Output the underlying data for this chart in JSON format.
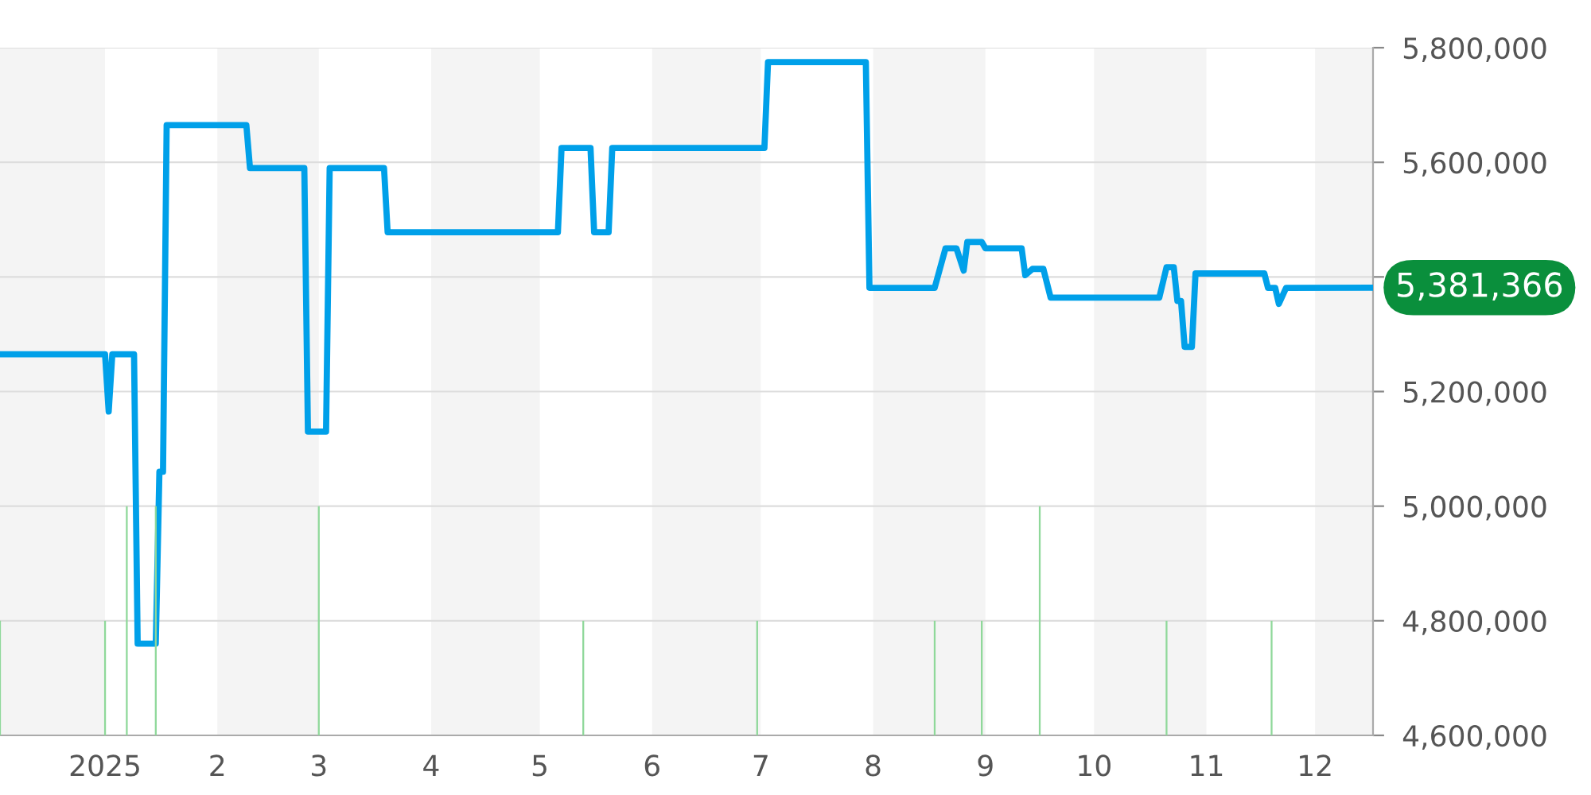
{
  "chart_data": {
    "type": "line",
    "series": [
      {
        "color": "#00a0e9",
        "x": [
          "2024-12-03",
          "2025-01-01",
          "2025-01-02",
          "2025-01-03",
          "2025-01-09",
          "2025-01-10",
          "2025-01-15",
          "2025-01-16",
          "2025-01-17",
          "2025-01-18",
          "2025-02-09",
          "2025-02-10",
          "2025-02-25",
          "2025-02-26",
          "2025-03-03",
          "2025-03-04",
          "2025-03-19",
          "2025-03-20",
          "2025-05-06",
          "2025-05-07",
          "2025-05-15",
          "2025-05-16",
          "2025-05-20",
          "2025-05-21",
          "2025-07-02",
          "2025-07-03",
          "2025-07-30",
          "2025-07-31",
          "2025-08-18",
          "2025-08-21",
          "2025-08-24",
          "2025-08-26",
          "2025-08-27",
          "2025-08-31",
          "2025-09-01",
          "2025-09-11",
          "2025-09-12",
          "2025-09-14",
          "2025-09-17",
          "2025-09-19",
          "2025-10-19",
          "2025-10-21",
          "2025-10-23",
          "2025-10-24",
          "2025-10-25",
          "2025-10-26",
          "2025-10-28",
          "2025-10-29",
          "2025-11-17",
          "2025-11-18",
          "2025-11-20",
          "2025-11-21",
          "2025-11-23",
          "2025-12-17"
        ],
        "values": [
          5265000,
          5265000,
          5165000,
          5265000,
          5265000,
          4760000,
          4760000,
          5060000,
          5060000,
          5665000,
          5665000,
          5590000,
          5590000,
          5130000,
          5130000,
          5590000,
          5590000,
          5478000,
          5478000,
          5625000,
          5625000,
          5478000,
          5478000,
          5625000,
          5625000,
          5775000,
          5775000,
          5381000,
          5381000,
          5450000,
          5450000,
          5411000,
          5461000,
          5461000,
          5450000,
          5450000,
          5403000,
          5414000,
          5414000,
          5364000,
          5364000,
          5417000,
          5417000,
          5358000,
          5358000,
          5278000,
          5278000,
          5406000,
          5406000,
          5381000,
          5381000,
          5353000,
          5381000,
          5381366
        ]
      },
      {
        "type": "bar",
        "color": "#8fd89a",
        "x": [
          "2024-12-03",
          "2025-01-01",
          "2025-01-07",
          "2025-01-15",
          "2025-03-01",
          "2025-05-13",
          "2025-06-30",
          "2025-08-18",
          "2025-08-31",
          "2025-09-16",
          "2025-10-21",
          "2025-11-19"
        ],
        "base": [
          4600000,
          4600000,
          4600000,
          4600000,
          4600000,
          4600000,
          4600000,
          4600000,
          4600000,
          4600000,
          4600000,
          4600000
        ],
        "values": [
          200000,
          200000,
          400000,
          400000,
          400000,
          200000,
          200000,
          200000,
          200000,
          400000,
          200000,
          200000
        ]
      }
    ],
    "xlim": [
      "2024-12-03",
      "2025-12-17"
    ],
    "xticks": [
      {
        "value": "2025-01-01",
        "label": "2025"
      },
      {
        "value": "2025-02-01",
        "label": "2"
      },
      {
        "value": "2025-03-01",
        "label": "3"
      },
      {
        "value": "2025-04-01",
        "label": "4"
      },
      {
        "value": "2025-05-01",
        "label": "5"
      },
      {
        "value": "2025-06-01",
        "label": "6"
      },
      {
        "value": "2025-07-01",
        "label": "7"
      },
      {
        "value": "2025-08-01",
        "label": "8"
      },
      {
        "value": "2025-09-01",
        "label": "9"
      },
      {
        "value": "2025-10-01",
        "label": "10"
      },
      {
        "value": "2025-11-01",
        "label": "11"
      },
      {
        "value": "2025-12-01",
        "label": "12"
      }
    ],
    "ylim": [
      4600000,
      5800000
    ],
    "yticks": [
      {
        "value": 4600000,
        "label": "4,600,000"
      },
      {
        "value": 4800000,
        "label": "4,800,000"
      },
      {
        "value": 5000000,
        "label": "5,000,000"
      },
      {
        "value": 5200000,
        "label": "5,200,000"
      },
      {
        "value": 5400000,
        "label": null
      },
      {
        "value": 5600000,
        "label": "5,600,000"
      },
      {
        "value": 5800000,
        "label": "5,800,000"
      }
    ],
    "grid": "y",
    "bands": [
      {
        "axis": "x",
        "from": "2024-12-03",
        "to": "2025-01-01",
        "color": "#f4f4f4"
      },
      {
        "axis": "x",
        "from": "2025-02-01",
        "to": "2025-03-01",
        "color": "#f4f4f4"
      },
      {
        "axis": "x",
        "from": "2025-04-01",
        "to": "2025-05-01",
        "color": "#f4f4f4"
      },
      {
        "axis": "x",
        "from": "2025-06-01",
        "to": "2025-07-01",
        "color": "#f4f4f4"
      },
      {
        "axis": "x",
        "from": "2025-08-01",
        "to": "2025-09-01",
        "color": "#f4f4f4"
      },
      {
        "axis": "x",
        "from": "2025-10-01",
        "to": "2025-11-01",
        "color": "#f4f4f4"
      },
      {
        "axis": "x",
        "from": "2025-12-01",
        "to": "2025-12-17",
        "color": "#f4f4f4"
      }
    ],
    "annotations": [
      {
        "text": "5,381,366",
        "x": "2025-12-17",
        "y": 5381366
      }
    ]
  }
}
